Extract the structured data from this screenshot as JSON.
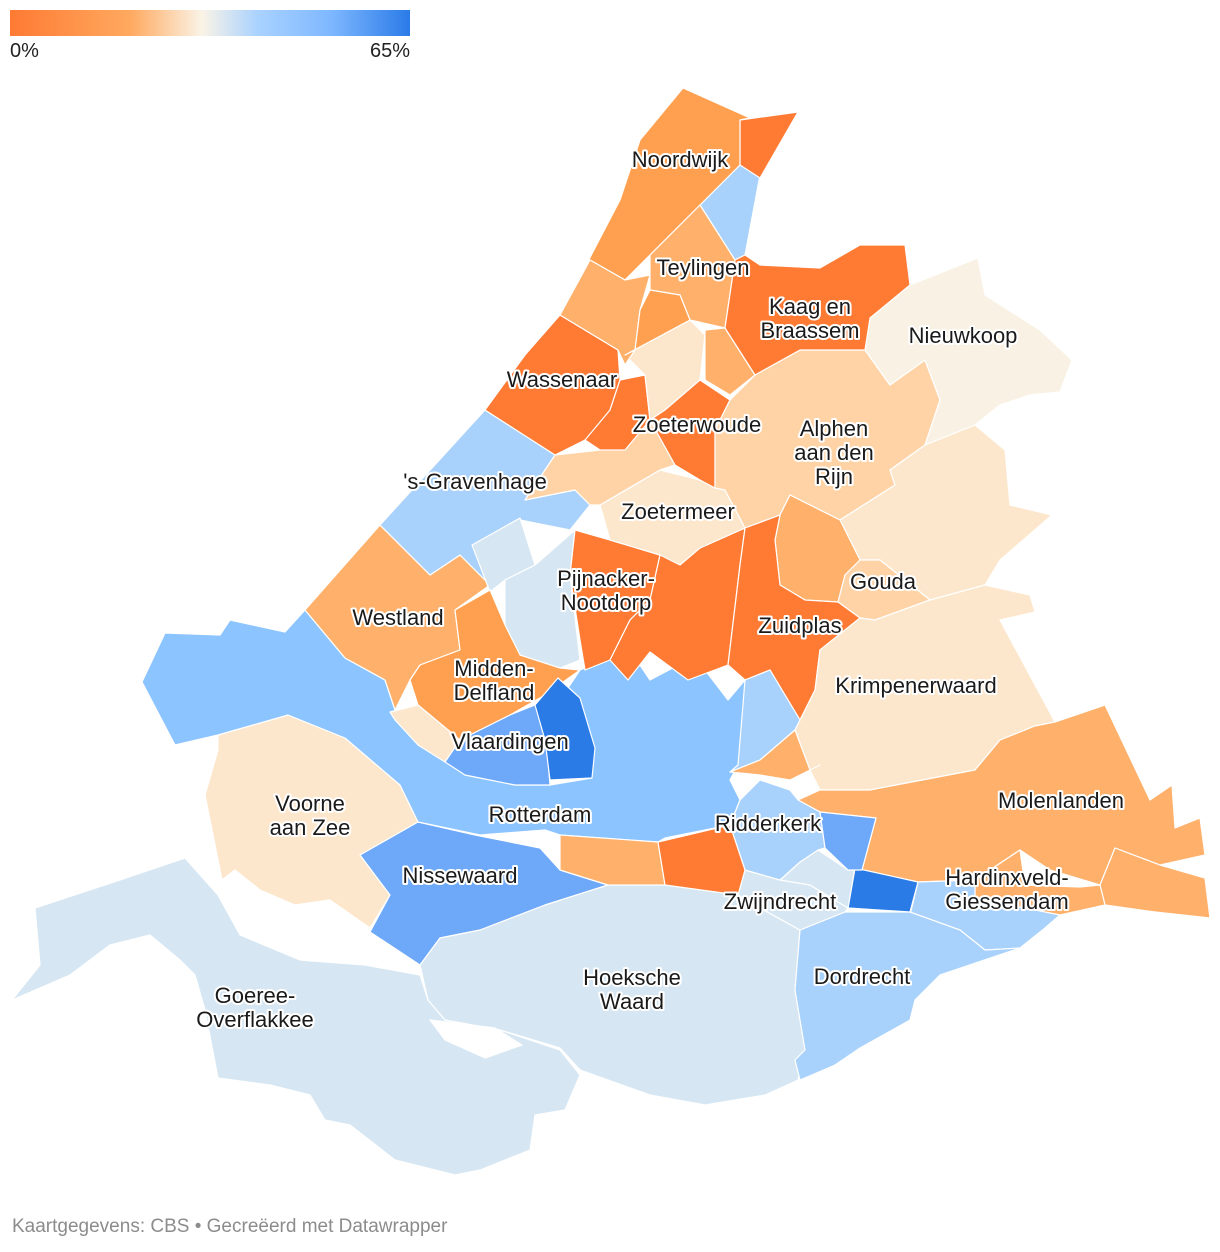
{
  "legend": {
    "min_label": "0%",
    "max_label": "65%"
  },
  "footer": {
    "text": "Kaartgegevens: CBS • Gecreëerd met Datawrapper"
  },
  "colors": {
    "orange_dark": "#ff7a33",
    "orange": "#ffa050",
    "orange_light": "#ffb06a",
    "peach": "#ffd3a6",
    "cream": "#fde7cc",
    "cream_light": "#f9f2e4",
    "blue_pale": "#d6e7f3",
    "blue_light": "#a8d1fb",
    "blue": "#8cc4ff",
    "blue_mid": "#6ea8f9",
    "blue_dark": "#2b7be6"
  },
  "labels": {
    "noordwijk": [
      "Noordwijk"
    ],
    "teylingen": [
      "Teylingen"
    ],
    "kaag": [
      "Kaag en",
      "Braassem"
    ],
    "nieuwkoop": [
      "Nieuwkoop"
    ],
    "wassenaar": [
      "Wassenaar"
    ],
    "zoeterwoude": [
      "Zoeterwoude"
    ],
    "alphen": [
      "Alphen",
      "aan den",
      "Rijn"
    ],
    "gravenhage": [
      "'s-Gravenhage"
    ],
    "zoetermeer": [
      "Zoetermeer"
    ],
    "pijnacker": [
      "Pijnacker-",
      "Nootdorp"
    ],
    "gouda": [
      "Gouda"
    ],
    "westland": [
      "Westland"
    ],
    "zuidplas": [
      "Zuidplas"
    ],
    "midden_delfland": [
      "Midden-",
      "Delfland"
    ],
    "krimpenerwaard": [
      "Krimpenerwaard"
    ],
    "vlaardingen": [
      "Vlaardingen"
    ],
    "molenlanden": [
      "Molenlanden"
    ],
    "voorne": [
      "Voorne",
      "aan Zee"
    ],
    "rotterdam": [
      "Rotterdam"
    ],
    "ridderkerk": [
      "Ridderkerk"
    ],
    "nissewaard": [
      "Nissewaard"
    ],
    "hardinxveld": [
      "Hardinxveld-",
      "Giessendam"
    ],
    "zwijndrecht": [
      "Zwijndrecht"
    ],
    "hoeksche_waard": [
      "Hoeksche",
      "Waard"
    ],
    "dordrecht": [
      "Dordrecht"
    ],
    "goeree": [
      "Goeree-",
      "Overflakkee"
    ]
  }
}
